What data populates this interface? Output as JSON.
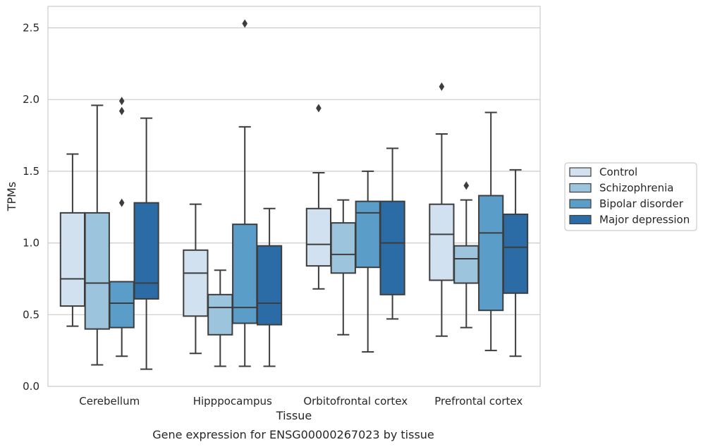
{
  "chart_data": {
    "type": "box",
    "caption": "Gene expression for ENSG00000267023 by tissue",
    "xlabel": "Tissue",
    "ylabel": "TPMs",
    "ylim": [
      0,
      2.65
    ],
    "yticks": [
      "0.0",
      "0.5",
      "1.0",
      "1.5",
      "2.0",
      "2.5"
    ],
    "grid": "horizontal",
    "legend_position": "right",
    "categories": [
      "Cerebellum",
      "Hipppocampus",
      "Orbitofrontal cortex",
      "Prefrontal cortex"
    ],
    "series": [
      {
        "name": "Control",
        "color": "#d1e1ef",
        "boxes": [
          {
            "whisker_low": 0.42,
            "q1": 0.56,
            "median": 0.75,
            "q3": 1.21,
            "whisker_high": 1.62,
            "outliers": []
          },
          {
            "whisker_low": 0.23,
            "q1": 0.49,
            "median": 0.79,
            "q3": 0.95,
            "whisker_high": 1.27,
            "outliers": []
          },
          {
            "whisker_low": 0.68,
            "q1": 0.84,
            "median": 0.99,
            "q3": 1.24,
            "whisker_high": 1.49,
            "outliers": [
              1.94
            ]
          },
          {
            "whisker_low": 0.35,
            "q1": 0.74,
            "median": 1.06,
            "q3": 1.27,
            "whisker_high": 1.76,
            "outliers": [
              2.09
            ]
          }
        ]
      },
      {
        "name": "Schizophrenia",
        "color": "#9dc4dd",
        "boxes": [
          {
            "whisker_low": 0.15,
            "q1": 0.4,
            "median": 0.72,
            "q3": 1.21,
            "whisker_high": 1.96,
            "outliers": []
          },
          {
            "whisker_low": 0.14,
            "q1": 0.36,
            "median": 0.55,
            "q3": 0.64,
            "whisker_high": 0.81,
            "outliers": []
          },
          {
            "whisker_low": 0.36,
            "q1": 0.79,
            "median": 0.92,
            "q3": 1.14,
            "whisker_high": 1.3,
            "outliers": []
          },
          {
            "whisker_low": 0.41,
            "q1": 0.72,
            "median": 0.89,
            "q3": 0.98,
            "whisker_high": 1.3,
            "outliers": [
              1.4
            ]
          }
        ]
      },
      {
        "name": "Bipolar disorder",
        "color": "#5b9dc9",
        "boxes": [
          {
            "whisker_low": 0.21,
            "q1": 0.41,
            "median": 0.58,
            "q3": 0.73,
            "whisker_high": 0.73,
            "outliers": [
              1.28,
              1.92,
              1.99
            ]
          },
          {
            "whisker_low": 0.14,
            "q1": 0.44,
            "median": 0.55,
            "q3": 1.13,
            "whisker_high": 1.81,
            "outliers": [
              2.53
            ]
          },
          {
            "whisker_low": 0.24,
            "q1": 0.83,
            "median": 1.21,
            "q3": 1.29,
            "whisker_high": 1.5,
            "outliers": []
          },
          {
            "whisker_low": 0.25,
            "q1": 0.53,
            "median": 1.07,
            "q3": 1.33,
            "whisker_high": 1.91,
            "outliers": []
          }
        ]
      },
      {
        "name": "Major depression",
        "color": "#2b6ca7",
        "boxes": [
          {
            "whisker_low": 0.12,
            "q1": 0.61,
            "median": 0.72,
            "q3": 1.28,
            "whisker_high": 1.87,
            "outliers": []
          },
          {
            "whisker_low": 0.14,
            "q1": 0.43,
            "median": 0.58,
            "q3": 0.98,
            "whisker_high": 1.24,
            "outliers": []
          },
          {
            "whisker_low": 0.47,
            "q1": 0.64,
            "median": 1.0,
            "q3": 1.29,
            "whisker_high": 1.66,
            "outliers": []
          },
          {
            "whisker_low": 0.21,
            "q1": 0.65,
            "median": 0.97,
            "q3": 1.2,
            "whisker_high": 1.51,
            "outliers": []
          }
        ]
      }
    ]
  }
}
